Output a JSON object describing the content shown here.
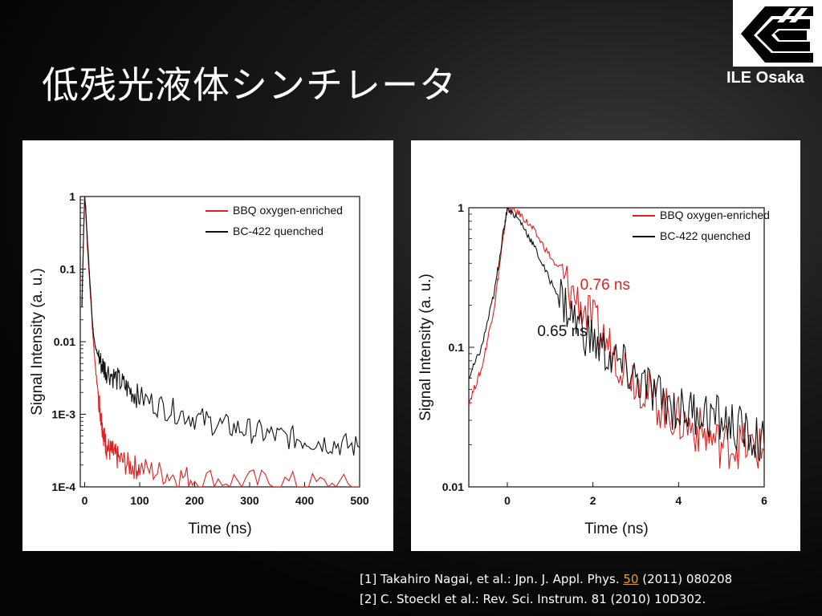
{
  "slide": {
    "title": "低残光液体シンチレータ",
    "logo_text": "ILE Osaka"
  },
  "references": {
    "ref1_prefix": "[1] Takahiro Nagai, et al.: Jpn. J. Appl. Phys.",
    "ref1_link": "50",
    "ref1_suffix": "(2011) 080208",
    "ref2": "[2] C. Stoeckl et al.: Rev. Sci. Instrum. 81 (2010) 10D302."
  },
  "colors": {
    "red": "#e02020",
    "black": "#111111",
    "link": "#e6a020"
  },
  "chart_data": [
    {
      "type": "line",
      "log_y": true,
      "xlabel": "Time (ns)",
      "ylabel": "Signal Intensity (a. u.)",
      "xlim": [
        -8,
        500
      ],
      "ylim": [
        0.0001,
        1
      ],
      "xticks": [
        0,
        100,
        200,
        300,
        400,
        500
      ],
      "xtick_labels": [
        "0",
        "100",
        "200",
        "300",
        "400",
        "500"
      ],
      "yticks": [
        1,
        0.1,
        0.01,
        0.001,
        0.0001
      ],
      "ytick_labels": [
        "1",
        "0.1",
        "0.01",
        "1E-3",
        "1E-4"
      ],
      "legend_position": "top-right",
      "series": [
        {
          "name": "BBQ oxygen-enriched",
          "color": "#e02020",
          "x": [
            -5,
            -2,
            0,
            2,
            5,
            10,
            15,
            20,
            25,
            30,
            35,
            40,
            50,
            60,
            80,
            100,
            150,
            200,
            300,
            400,
            500
          ],
          "y": [
            0.03,
            0.3,
            1,
            0.6,
            0.2,
            0.05,
            0.012,
            0.004,
            0.0018,
            0.0009,
            0.0005,
            0.00035,
            0.0003,
            0.00025,
            0.0002,
            0.00018,
            0.00015,
            0.00013,
            0.00012,
            0.00011,
            0.0001
          ]
        },
        {
          "name": "BC-422 quenched",
          "color": "#111111",
          "x": [
            -5,
            -2,
            0,
            2,
            5,
            10,
            15,
            20,
            30,
            40,
            60,
            80,
            100,
            150,
            200,
            250,
            300,
            350,
            400,
            450,
            500
          ],
          "y": [
            0.03,
            0.3,
            1,
            0.7,
            0.25,
            0.06,
            0.015,
            0.008,
            0.005,
            0.004,
            0.003,
            0.0022,
            0.0017,
            0.0012,
            0.0009,
            0.0007,
            0.0006,
            0.0005,
            0.00045,
            0.0004,
            0.00035
          ]
        }
      ]
    },
    {
      "type": "line",
      "log_y": true,
      "xlabel": "Time (ns)",
      "ylabel": "Signal Intensity (a. u.)",
      "xlim": [
        -0.9,
        6
      ],
      "ylim": [
        0.01,
        1
      ],
      "xticks": [
        0,
        2,
        4,
        6
      ],
      "xtick_labels": [
        "0",
        "2",
        "4",
        "6"
      ],
      "yticks": [
        1,
        0.1,
        0.01
      ],
      "ytick_labels": [
        "1",
        "0.1",
        "0.01"
      ],
      "legend_position": "top-right",
      "annotations": [
        {
          "text": "0.76 ns",
          "x": 1.7,
          "y": 0.26,
          "color": "#e02020"
        },
        {
          "text": "0.65 ns",
          "x": 0.7,
          "y": 0.12,
          "color": "#111111"
        }
      ],
      "series": [
        {
          "name": "BBQ oxygen-enriched",
          "color": "#e02020",
          "x": [
            -0.9,
            -0.6,
            -0.3,
            -0.1,
            0,
            0.3,
            0.6,
            1.0,
            1.5,
            2.0,
            2.5,
            3.0,
            3.5,
            4.0,
            4.5,
            5.0,
            5.5,
            6.0
          ],
          "y": [
            0.04,
            0.07,
            0.2,
            0.6,
            1,
            0.9,
            0.7,
            0.45,
            0.25,
            0.15,
            0.09,
            0.06,
            0.04,
            0.03,
            0.025,
            0.02,
            0.02,
            0.018
          ]
        },
        {
          "name": "BC-422 quenched",
          "color": "#111111",
          "x": [
            -0.9,
            -0.6,
            -0.3,
            -0.1,
            0,
            0.3,
            0.6,
            1.0,
            1.5,
            2.0,
            2.5,
            3.0,
            3.5,
            4.0,
            4.5,
            5.0,
            5.5,
            6.0
          ],
          "y": [
            0.06,
            0.1,
            0.25,
            0.65,
            1,
            0.8,
            0.55,
            0.3,
            0.17,
            0.11,
            0.08,
            0.06,
            0.045,
            0.035,
            0.035,
            0.03,
            0.025,
            0.02
          ]
        }
      ]
    }
  ]
}
